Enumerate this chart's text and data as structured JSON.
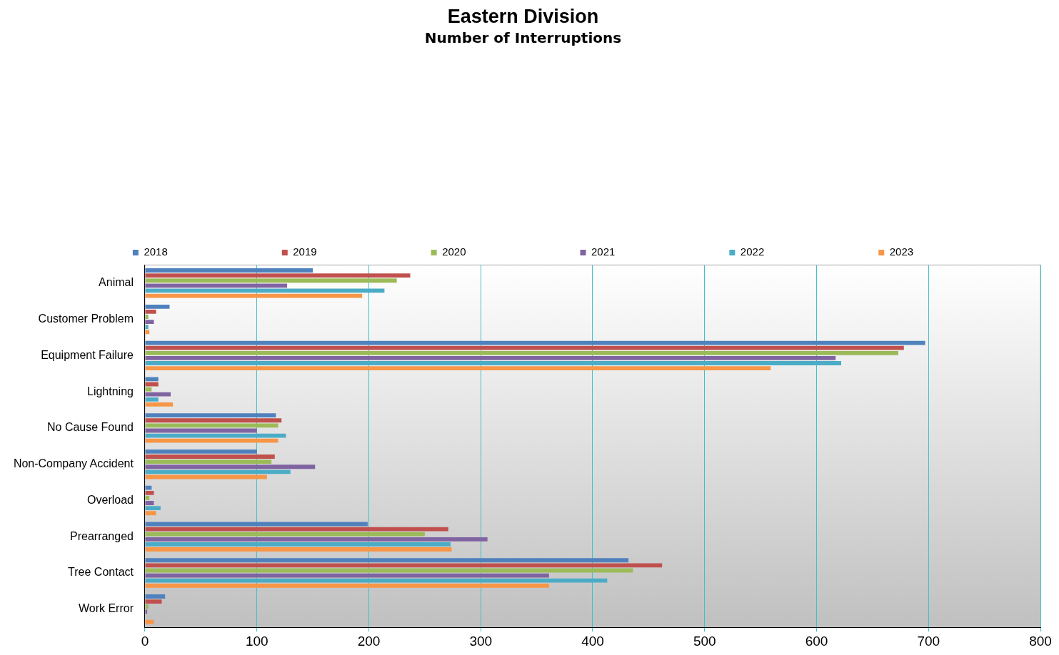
{
  "chart_data": {
    "type": "bar",
    "orientation": "horizontal",
    "title": "Eastern Division",
    "subtitle": "Number of Interruptions",
    "categories": [
      "Animal",
      "Customer Problem",
      "Equipment Failure",
      "Lightning",
      "No Cause Found",
      "Non-Company Accident",
      "Overload",
      "Prearranged",
      "Tree Contact",
      "Work Error"
    ],
    "series": [
      {
        "name": "2018",
        "color": "#4f81bd",
        "values": [
          150,
          22,
          697,
          12,
          117,
          100,
          6,
          199,
          432,
          18
        ]
      },
      {
        "name": "2019",
        "color": "#c0504d",
        "values": [
          237,
          10,
          678,
          12,
          122,
          116,
          8,
          271,
          462,
          15
        ]
      },
      {
        "name": "2020",
        "color": "#9bbb59",
        "values": [
          225,
          3,
          673,
          6,
          119,
          113,
          4,
          250,
          436,
          3
        ]
      },
      {
        "name": "2021",
        "color": "#8064a2",
        "values": [
          127,
          8,
          617,
          23,
          100,
          152,
          8,
          306,
          361,
          2
        ]
      },
      {
        "name": "2022",
        "color": "#4bacc6",
        "values": [
          214,
          3,
          622,
          12,
          126,
          130,
          14,
          273,
          413,
          0
        ]
      },
      {
        "name": "2023",
        "color": "#f79646",
        "values": [
          194,
          4,
          559,
          25,
          119,
          109,
          10,
          274,
          361,
          8
        ]
      }
    ],
    "xlim": [
      0,
      800
    ],
    "xticks": [
      0,
      100,
      200,
      300,
      400,
      500,
      600,
      700,
      800
    ],
    "grid": "x",
    "legend": "top"
  }
}
